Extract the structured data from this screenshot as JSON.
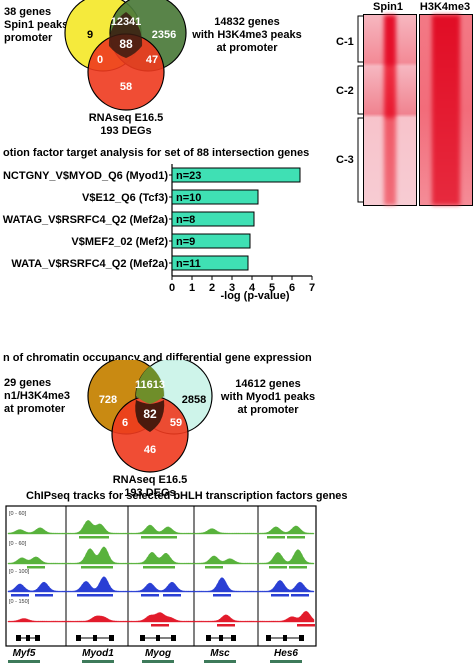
{
  "venn1": {
    "left_label": [
      "38 genes",
      "Spin1 peaks",
      "promoter"
    ],
    "right_label": [
      "14832 genes",
      "with H3K4me3 peaks",
      "at promoter"
    ],
    "bottom_label": [
      "RNAseq E16.5",
      "193 DEGs"
    ],
    "regions": {
      "left_only": "9",
      "top_overlap": "12341",
      "right_only": "2356",
      "center": "88",
      "left_bottom": "0",
      "right_bottom": "47",
      "bottom_only": "58"
    },
    "colors": {
      "left": "#f5ea3c",
      "right": "#4b7a3a",
      "bottom": "#ee3a1e"
    }
  },
  "heatmap": {
    "columns": [
      "Spin1",
      "H3K4me3"
    ],
    "clusters": [
      "C-1",
      "C-2",
      "C-3"
    ]
  },
  "tf_chart": {
    "title": "otion factor target analysis for set of 88 intersection genes",
    "xlabel": "-log (p-value)",
    "bar_color": "#3fe0b4"
  },
  "chart_data": {
    "type": "bar",
    "orientation": "horizontal",
    "title": "otion factor target analysis for set of 88 intersection genes",
    "xlabel": "-log (p-value)",
    "ylabel": "",
    "categories": [
      "NCTGNY_V$MYOD_Q6 (Myod1)",
      "V$E12_Q6 (Tcf3)",
      "WATAG_V$RSRFC4_Q2 (Mef2a)",
      "V$MEF2_02 (Mef2)",
      "WATA_V$RSRFC4_Q2 (Mef2a)"
    ],
    "values": [
      6.4,
      4.3,
      4.1,
      3.9,
      3.8
    ],
    "data_labels": [
      "n=23",
      "n=10",
      "n=8",
      "n=9",
      "n=11"
    ],
    "xlim": [
      0,
      7
    ],
    "xticks": [
      "0",
      "1",
      "2",
      "3",
      "4",
      "5",
      "6",
      "7"
    ],
    "grid": false
  },
  "section3": {
    "title": "n of chromatin occupancy and differential gene expression"
  },
  "venn2": {
    "left_label": [
      "29 genes",
      "n1/H3K4me3",
      "at promoter"
    ],
    "right_label": [
      "14612 genes",
      "with Myod1 peaks",
      "at promoter"
    ],
    "bottom_label": [
      "RNAseq E16.5",
      "193 DEGs"
    ],
    "regions": {
      "left_only": "728",
      "top_overlap": "11613",
      "right_only": "2858",
      "center": "82",
      "left_bottom": "6",
      "right_bottom": "59",
      "bottom_only": "46"
    },
    "colors": {
      "left": "#c98a12",
      "right": "#c6f2e6",
      "bottom": "#ee3a1e"
    }
  },
  "tracks": {
    "title": "ChIPseq tracks for selected bHLH transcription factors genes",
    "scales": [
      "[0 - 60]",
      "[0 - 60]",
      "[0 - 100]",
      "[0 - 150]"
    ],
    "genes": [
      "Myf5",
      "Myod1",
      "Myog",
      "Msc",
      "Hes6"
    ],
    "colors": [
      "#58b23c",
      "#58b23c",
      "#2a3fd4",
      "#e21b2b"
    ]
  }
}
